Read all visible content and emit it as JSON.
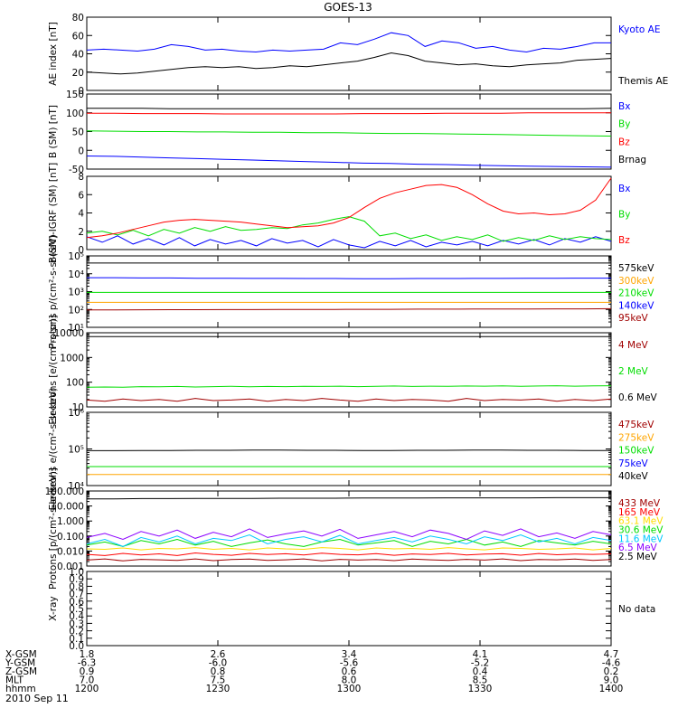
{
  "title": "GOES-13",
  "date_label": "2010 Sep 11",
  "colors": {
    "black": "#000000",
    "blue": "#0000ff",
    "red": "#ff0000",
    "green": "#00dd00",
    "orange": "#ffa500",
    "yellow": "#ffdd00",
    "cyan": "#00c8ff",
    "purple": "#8b00ff",
    "darkred": "#a00000"
  },
  "chart_data": [
    {
      "type": "line",
      "ylabel": "AE index [nT]",
      "ylim": [
        0,
        80
      ],
      "scale": "linear",
      "yticks": [
        0,
        20,
        40,
        60,
        80
      ],
      "yticklabels": [
        "0",
        "20",
        "40",
        "60",
        "80"
      ],
      "series": [
        {
          "name": "Kyoto AE",
          "color": "#0000ff",
          "values": [
            44,
            45,
            44,
            43,
            45,
            50,
            48,
            44,
            45,
            43,
            42,
            44,
            43,
            44,
            45,
            52,
            50,
            56,
            63,
            60,
            48,
            54,
            52,
            46,
            48,
            44,
            42,
            46,
            45,
            48,
            52,
            52
          ]
        },
        {
          "name": "Themis AE",
          "color": "#000000",
          "values": [
            20,
            19,
            18,
            19,
            21,
            23,
            25,
            26,
            25,
            26,
            24,
            25,
            27,
            26,
            28,
            30,
            32,
            36,
            41,
            38,
            32,
            30,
            28,
            29,
            27,
            26,
            28,
            29,
            30,
            33,
            34,
            35
          ]
        }
      ]
    },
    {
      "type": "line",
      "ylabel": "B (SM) [nT]",
      "ylim": [
        -50,
        150
      ],
      "scale": "linear",
      "yticks": [
        -50,
        0,
        50,
        100,
        150
      ],
      "yticklabels": [
        "-50",
        "0",
        "50",
        "100",
        "150"
      ],
      "series": [
        {
          "name": "Bx",
          "color": "#0000ff",
          "values": [
            -15,
            -16,
            -18,
            -20,
            -22,
            -24,
            -26,
            -28,
            -30,
            -32,
            -34,
            -35,
            -37,
            -38,
            -40,
            -41,
            -42,
            -43,
            -44,
            -45
          ]
        },
        {
          "name": "By",
          "color": "#00dd00",
          "values": [
            52,
            51,
            50,
            50,
            49,
            49,
            48,
            48,
            47,
            47,
            46,
            45,
            45,
            44,
            43,
            42,
            41,
            40,
            39,
            38
          ]
        },
        {
          "name": "Bz",
          "color": "#ff0000",
          "values": [
            99,
            99,
            98,
            98,
            98,
            97,
            97,
            97,
            97,
            97,
            98,
            98,
            98,
            99,
            99,
            99,
            100,
            100,
            100,
            100
          ]
        },
        {
          "name": "Brnag",
          "color": "#000000",
          "values": [
            112,
            112,
            112,
            111,
            111,
            111,
            111,
            111,
            111,
            111,
            111,
            111,
            111,
            111,
            111,
            111,
            111,
            111,
            111,
            112
          ]
        }
      ]
    },
    {
      "type": "line",
      "ylabel": "B(SM)-IGRF (SM) [nT]",
      "ylim": [
        0,
        8
      ],
      "scale": "linear",
      "yticks": [
        0,
        2,
        4,
        6,
        8
      ],
      "yticklabels": [
        "0",
        "2",
        "4",
        "6",
        "8"
      ],
      "series": [
        {
          "name": "Bx",
          "color": "#0000ff",
          "values": [
            1.4,
            0.8,
            1.5,
            0.6,
            1.2,
            0.5,
            1.3,
            0.4,
            1.1,
            0.6,
            1.0,
            0.4,
            1.2,
            0.7,
            1.0,
            0.3,
            1.1,
            0.5,
            0.2,
            0.9,
            0.4,
            1.0,
            0.3,
            0.8,
            0.5,
            0.9,
            0.4,
            1.0,
            0.6,
            1.1,
            0.5,
            1.2,
            0.8,
            1.4,
            0.9
          ]
        },
        {
          "name": "By",
          "color": "#00dd00",
          "values": [
            1.8,
            2.0,
            1.6,
            2.1,
            1.5,
            2.2,
            1.8,
            2.4,
            2.0,
            2.5,
            2.1,
            2.2,
            2.4,
            2.3,
            2.7,
            2.9,
            3.3,
            3.6,
            3.1,
            1.5,
            1.8,
            1.2,
            1.6,
            1.0,
            1.4,
            1.1,
            1.6,
            0.9,
            1.3,
            1.0,
            1.5,
            1.1,
            1.4,
            1.2,
            1.1
          ]
        },
        {
          "name": "Bz",
          "color": "#ff0000",
          "values": [
            1.3,
            1.5,
            1.8,
            2.2,
            2.6,
            3.0,
            3.2,
            3.3,
            3.2,
            3.1,
            3.0,
            2.8,
            2.6,
            2.4,
            2.5,
            2.6,
            2.9,
            3.5,
            4.6,
            5.6,
            6.2,
            6.6,
            7.0,
            7.1,
            6.8,
            6.0,
            5.0,
            4.2,
            3.9,
            4.0,
            3.8,
            3.9,
            4.3,
            5.4,
            7.8
          ]
        }
      ]
    },
    {
      "type": "line",
      "ylabel": "Protons p/(cm²-s-sr-keV)",
      "ylim": [
        10,
        100000
      ],
      "scale": "log",
      "yticks": [
        10,
        100,
        1000,
        10000,
        100000
      ],
      "yticklabels": [
        "10¹",
        "10²",
        "10³",
        "10⁴",
        "10⁵"
      ],
      "series": [
        {
          "name": "575keV",
          "color": "#000000",
          "values": [
            40000,
            40000,
            40000,
            40000,
            40000,
            40000,
            40000,
            40000,
            40000,
            40000,
            40000,
            40000,
            40000,
            40000,
            40000,
            40000,
            40000,
            40000,
            40000,
            40000
          ]
        },
        {
          "name": "300keV",
          "color": "#ffa500",
          "values": [
            250,
            250,
            250,
            250,
            250,
            250,
            250,
            250,
            250,
            250,
            250,
            250,
            250,
            250,
            250,
            250,
            250,
            250,
            250,
            250
          ]
        },
        {
          "name": "210keV",
          "color": "#00dd00",
          "values": [
            900,
            900,
            900,
            900,
            900,
            900,
            900,
            900,
            900,
            900,
            900,
            900,
            900,
            900,
            900,
            900,
            900,
            900,
            900,
            900
          ]
        },
        {
          "name": "140keV",
          "color": "#0000ff",
          "values": [
            6000,
            6000,
            5800,
            5800,
            5600,
            5600,
            5500,
            5500,
            5400,
            5400,
            5300,
            5300,
            5400,
            5400,
            5500,
            5500,
            5600,
            5600,
            5700,
            5700
          ]
        },
        {
          "name": "95keV",
          "color": "#a00000",
          "values": [
            95,
            95,
            96,
            97,
            97,
            98,
            98,
            100,
            100,
            101,
            102,
            102,
            104,
            104,
            105,
            106,
            107,
            108,
            108,
            110
          ]
        }
      ]
    },
    {
      "type": "line",
      "ylabel": "Electrons [e/(cm²-s-sr)]",
      "ylim": [
        10,
        10000
      ],
      "scale": "log",
      "yticks": [
        10,
        100,
        1000,
        10000
      ],
      "yticklabels": [
        "10",
        "100",
        "1000",
        "10000"
      ],
      "series": [
        {
          "name": "4 MeV",
          "color": "#a00000",
          "values": [
            19,
            17,
            21,
            18,
            20,
            17,
            22,
            18,
            19,
            21,
            17,
            20,
            18,
            22,
            19,
            17,
            21,
            18,
            20,
            19,
            17,
            22,
            18,
            20,
            19,
            21,
            17,
            20,
            18,
            21
          ]
        },
        {
          "name": "2 MeV",
          "color": "#00dd00",
          "values": [
            62,
            64,
            63,
            66,
            65,
            67,
            64,
            66,
            68,
            65,
            67,
            66,
            68,
            67,
            69,
            66,
            68,
            70,
            67,
            69,
            68,
            70,
            69,
            71,
            68,
            70,
            72,
            69,
            71,
            72
          ]
        },
        {
          "name": "0.6 MeV",
          "color": "#000000",
          "values": [
            7000,
            7000,
            7000,
            7000,
            7000,
            7000,
            7000,
            7000,
            7000,
            7000,
            7000,
            7000,
            7000,
            7000,
            7000,
            7000,
            7000,
            7000,
            7000,
            7000
          ]
        }
      ]
    },
    {
      "type": "line",
      "ylabel": "Electrons e/(cm²-s-sr-keV)",
      "ylim": [
        10000,
        1000000
      ],
      "scale": "log",
      "yticks": [
        10000,
        100000,
        1000000
      ],
      "yticklabels": [
        "10⁴",
        "10⁵",
        "10⁶"
      ],
      "series": [
        {
          "name": "475keV",
          "color": "#a00000",
          "values": []
        },
        {
          "name": "275keV",
          "color": "#ffa500",
          "values": [
            20000,
            20000,
            20000,
            20000,
            20000,
            20000,
            20000,
            20000,
            20000,
            20000,
            20000,
            20000,
            20000,
            20000,
            20000,
            20000,
            20000,
            20000,
            20000,
            20000
          ]
        },
        {
          "name": "150keV",
          "color": "#00dd00",
          "values": [
            33000,
            33000,
            33000,
            33000,
            33000,
            33000,
            33000,
            33000,
            33000,
            33000,
            33000,
            33000,
            33000,
            33000,
            33000,
            33000,
            33000,
            33000,
            33000,
            33000
          ]
        },
        {
          "name": "75keV",
          "color": "#0000ff",
          "values": []
        },
        {
          "name": "40keV",
          "color": "#000000",
          "values": [
            90000,
            90000,
            91000,
            91000,
            92000,
            92000,
            93000,
            93000,
            92000,
            92000,
            91000,
            91000,
            92000,
            92000,
            93000,
            93000,
            92000,
            92000,
            91000,
            91000
          ]
        }
      ]
    },
    {
      "type": "line",
      "ylabel": "Protons [p/(cm²-s-sr-keV)]",
      "ylim": [
        0.001,
        100
      ],
      "scale": "log",
      "yticks": [
        0.001,
        0.01,
        0.1,
        1,
        10,
        100
      ],
      "yticklabels": [
        "0.001",
        "0.010",
        "0.100",
        "1.000",
        "10.000",
        "100.000"
      ],
      "series": [
        {
          "name": "433 MeV",
          "color": "#a00000",
          "values": [
            0.0025,
            0.003,
            0.0022,
            0.0028,
            0.0026,
            0.0024,
            0.003,
            0.0023,
            0.0027,
            0.0029,
            0.0024,
            0.0026,
            0.003,
            0.0022,
            0.0028,
            0.0025,
            0.0027,
            0.0023,
            0.0029,
            0.0026,
            0.0024,
            0.0028,
            0.0025,
            0.003,
            0.0023,
            0.0027,
            0.0026,
            0.0029,
            0.0024,
            0.0027
          ]
        },
        {
          "name": "165 MeV",
          "color": "#ff0000",
          "values": [
            0.006,
            0.005,
            0.007,
            0.0055,
            0.0065,
            0.005,
            0.0075,
            0.006,
            0.0052,
            0.007,
            0.0058,
            0.0066,
            0.0054,
            0.0072,
            0.006,
            0.0056,
            0.0068,
            0.0052,
            0.0064,
            0.0058,
            0.007,
            0.0055,
            0.0062,
            0.0066,
            0.0053,
            0.0069,
            0.0057,
            0.0063,
            0.006,
            0.0065
          ]
        },
        {
          "name": "63.1 MeV",
          "color": "#ffdd00",
          "values": [
            0.014,
            0.013,
            0.016,
            0.012,
            0.015,
            0.014,
            0.017,
            0.013,
            0.015,
            0.012,
            0.016,
            0.014,
            0.013,
            0.017,
            0.015,
            0.012,
            0.016,
            0.014,
            0.015,
            0.013,
            0.017,
            0.014,
            0.012,
            0.016,
            0.015,
            0.013,
            0.014,
            0.016,
            0.012,
            0.015
          ]
        },
        {
          "name": "30.6 MeV",
          "color": "#00dd00",
          "values": [
            0.025,
            0.04,
            0.02,
            0.05,
            0.03,
            0.06,
            0.025,
            0.045,
            0.02,
            0.035,
            0.055,
            0.03,
            0.02,
            0.04,
            0.06,
            0.025,
            0.035,
            0.05,
            0.02,
            0.045,
            0.03,
            0.06,
            0.025,
            0.04,
            0.02,
            0.05,
            0.035,
            0.025,
            0.045,
            0.03
          ]
        },
        {
          "name": "11.6 MeV",
          "color": "#00c8ff",
          "values": [
            0.03,
            0.06,
            0.02,
            0.08,
            0.04,
            0.1,
            0.03,
            0.07,
            0.05,
            0.12,
            0.03,
            0.06,
            0.09,
            0.04,
            0.11,
            0.03,
            0.05,
            0.08,
            0.04,
            0.1,
            0.06,
            0.03,
            0.09,
            0.05,
            0.12,
            0.04,
            0.07,
            0.03,
            0.08,
            0.05
          ]
        },
        {
          "name": "6.5 MeV",
          "color": "#8b00ff",
          "values": [
            0.08,
            0.15,
            0.06,
            0.2,
            0.1,
            0.25,
            0.07,
            0.18,
            0.09,
            0.3,
            0.08,
            0.14,
            0.22,
            0.1,
            0.28,
            0.07,
            0.12,
            0.2,
            0.09,
            0.25,
            0.15,
            0.06,
            0.22,
            0.11,
            0.3,
            0.09,
            0.16,
            0.07,
            0.2,
            0.12
          ]
        },
        {
          "name": "2.5 MeV",
          "color": "#000000",
          "values": [
            30,
            30,
            31,
            31,
            32,
            32,
            32,
            33,
            33,
            33,
            34,
            34,
            34,
            35,
            35,
            35,
            35,
            36,
            36,
            36
          ]
        }
      ]
    },
    {
      "type": "line",
      "ylabel": "X-ray",
      "ylim": [
        0,
        1
      ],
      "scale": "linear",
      "yticks": [
        0,
        0.1,
        0.2,
        0.3,
        0.4,
        0.5,
        0.6,
        0.7,
        0.8,
        0.9,
        1.0
      ],
      "yticklabels": [
        "0.0",
        "0.1",
        "0.2",
        "0.3",
        "0.4",
        "0.5",
        "0.6",
        "0.7",
        "0.8",
        "0.9",
        "1.0"
      ],
      "no_data_label": "No data",
      "series": []
    }
  ],
  "ephemeris": {
    "labels": [
      "X-GSM",
      "Y-GSM",
      "Z-GSM",
      "MLT",
      "hhmm"
    ],
    "columns": [
      [
        "1.8",
        "-6.3",
        "0.9",
        "7.0",
        "1200"
      ],
      [
        "2.6",
        "-6.0",
        "0.8",
        "7.5",
        "1230"
      ],
      [
        "3.4",
        "-5.6",
        "0.6",
        "8.0",
        "1300"
      ],
      [
        "4.1",
        "-5.2",
        "0.4",
        "8.5",
        "1330"
      ],
      [
        "4.7",
        "-4.6",
        "0.2",
        "9.0",
        "1400"
      ]
    ]
  }
}
